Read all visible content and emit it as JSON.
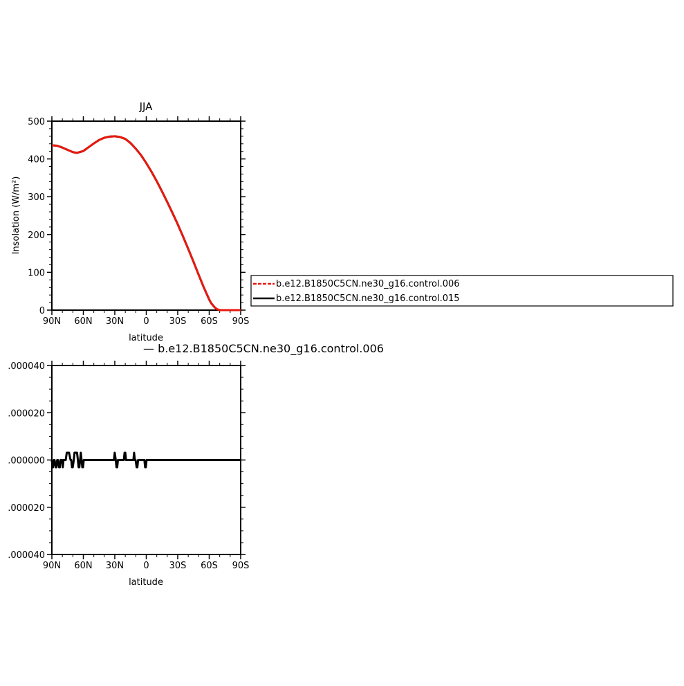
{
  "chart_data": [
    {
      "type": "line",
      "title": "JJA",
      "xlabel": "latitude",
      "ylabel": "Insolation (W/m²)",
      "xlim": [
        90,
        -90
      ],
      "ylim": [
        0,
        500
      ],
      "x_ticks": [
        90,
        60,
        30,
        0,
        -30,
        -60,
        -90
      ],
      "x_tick_labels": [
        "90N",
        "60N",
        "30N",
        "0",
        "30S",
        "60S",
        "90S"
      ],
      "y_ticks": [
        0,
        100,
        200,
        300,
        400,
        500
      ],
      "y_tick_labels": [
        "0",
        "100",
        "200",
        "300",
        "400",
        "500"
      ],
      "x": [
        90,
        85,
        80,
        75,
        70,
        66,
        60,
        55,
        50,
        45,
        40,
        35,
        30,
        25,
        20,
        15,
        10,
        5,
        0,
        -5,
        -10,
        -15,
        -20,
        -25,
        -30,
        -35,
        -40,
        -45,
        -50,
        -55,
        -60,
        -62,
        -65,
        -67,
        -70,
        -75,
        -80,
        -85,
        -90
      ],
      "series": [
        {
          "name": "b.e12.B1850C5CN.ne30_g16.control.006",
          "color": "#e8190e",
          "style": "dashed",
          "values": [
            436,
            435,
            430,
            424,
            418,
            416,
            421,
            431,
            441,
            450,
            456,
            459,
            460,
            458,
            453,
            442,
            427,
            410,
            389,
            366,
            341,
            314,
            286,
            257,
            227,
            195,
            162,
            128,
            93,
            59,
            28,
            18,
            8,
            3,
            0,
            0,
            0,
            0,
            0
          ]
        },
        {
          "name": "b.e12.B1850C5CN.ne30_g16.control.015",
          "color": "#000000",
          "style": "solid",
          "values": [
            436,
            435,
            430,
            424,
            418,
            416,
            421,
            431,
            441,
            450,
            456,
            459,
            460,
            458,
            453,
            442,
            427,
            410,
            389,
            366,
            341,
            314,
            286,
            257,
            227,
            195,
            162,
            128,
            93,
            59,
            28,
            18,
            8,
            3,
            0,
            0,
            0,
            0,
            0
          ]
        }
      ],
      "legend": "right"
    },
    {
      "type": "line",
      "title": "— b.e12.B1850C5CN.ne30_g16.control.006",
      "xlabel": "latitude",
      "ylabel": "",
      "xlim": [
        90,
        -90
      ],
      "ylim": [
        -4e-05,
        4e-05
      ],
      "x_ticks": [
        90,
        60,
        30,
        0,
        -30,
        -60,
        -90
      ],
      "x_tick_labels": [
        "90N",
        "60N",
        "30N",
        "0",
        "30S",
        "60S",
        "90S"
      ],
      "y_ticks": [
        4e-05,
        2e-05,
        0,
        -2e-05,
        -4e-05
      ],
      "y_tick_labels": [
        ".000040",
        ".000020",
        ".000000",
        ".000020",
        ".000040"
      ],
      "x": [
        90,
        89.5,
        88.8,
        88.1,
        87.4,
        86.3,
        85.6,
        84.9,
        84.2,
        83.1,
        82.4,
        81.7,
        80.3,
        79.6,
        78.9,
        76.8,
        75.8,
        75.1,
        74.3,
        73.6,
        72.2,
        71.5,
        70.8,
        70.1,
        69.1,
        68.4,
        67.7,
        66.7,
        66.0,
        65.2,
        64.5,
        63.8,
        63.1,
        62.4,
        61.7,
        61.0,
        60.3,
        59.6,
        58.9,
        30.8,
        30.1,
        29.1,
        28.4,
        27.7,
        27.0,
        26.3,
        21.4,
        20.7,
        20.0,
        19.3,
        12.3,
        11.6,
        10.9,
        10.2,
        9.2,
        8.5,
        7.8,
        6.7,
        1.8,
        1.1,
        0.4,
        -0.3,
        -90
      ],
      "values": [
        0,
        -3.07e-06,
        -3.07e-06,
        0,
        0,
        -3.07e-06,
        -3.07e-06,
        0,
        0,
        -3.07e-06,
        -3.07e-06,
        0,
        0,
        -3.07e-06,
        0,
        0,
        3.07e-06,
        3.07e-06,
        3.07e-06,
        3.07e-06,
        0,
        0,
        -3.07e-06,
        -3.07e-06,
        0,
        3.07e-06,
        3.07e-06,
        3.07e-06,
        3.07e-06,
        0,
        -3.07e-06,
        -3.07e-06,
        0,
        3.07e-06,
        0,
        -3.07e-06,
        -3.07e-06,
        0,
        0,
        0,
        3.07e-06,
        0,
        -3.07e-06,
        -3.07e-06,
        0,
        0,
        0,
        3.07e-06,
        3.07e-06,
        0,
        0,
        3.07e-06,
        0,
        0,
        -3.07e-06,
        -3.07e-06,
        0,
        0,
        0,
        -3.07e-06,
        -3.07e-06,
        0,
        0
      ]
    }
  ]
}
